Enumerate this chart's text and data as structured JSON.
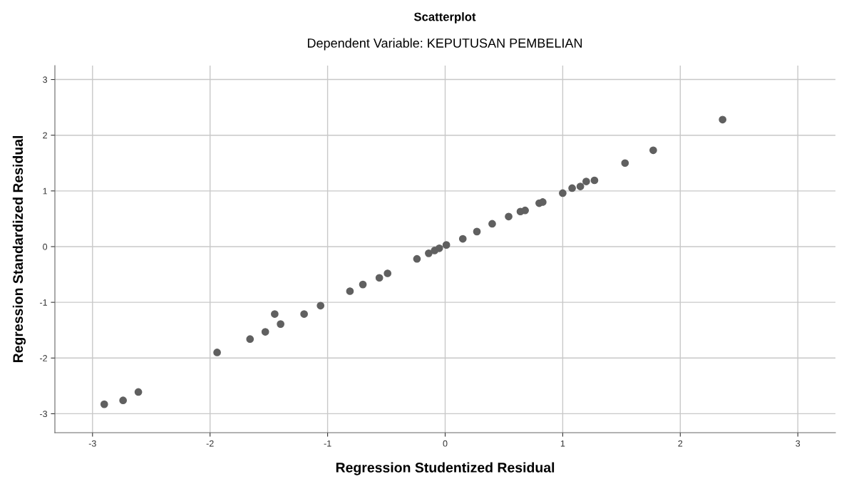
{
  "chart_data": {
    "type": "scatter",
    "title": "Scatterplot",
    "subtitle": "Dependent Variable: KEPUTUSAN PEMBELIAN",
    "xlabel": "Regression Studentized Residual",
    "ylabel": "Regression Standardized Residual",
    "series": [
      {
        "color": "#606060",
        "x": [
          -2.9,
          -2.74,
          -2.61,
          -1.94,
          -1.66,
          -1.53,
          -1.45,
          -1.4,
          -1.2,
          -1.06,
          -0.81,
          -0.7,
          -0.56,
          -0.49,
          -0.24,
          -0.14,
          -0.09,
          -0.05,
          0.01,
          0.15,
          0.27,
          0.4,
          0.54,
          0.64,
          0.68,
          0.8,
          0.83,
          1.0,
          1.08,
          1.15,
          1.2,
          1.27,
          1.53,
          1.77,
          2.36
        ],
        "values": [
          -2.83,
          -2.76,
          -2.61,
          -1.9,
          -1.66,
          -1.53,
          -1.21,
          -1.39,
          -1.21,
          -1.06,
          -0.8,
          -0.68,
          -0.56,
          -0.48,
          -0.22,
          -0.12,
          -0.07,
          -0.03,
          0.03,
          0.14,
          0.27,
          0.41,
          0.54,
          0.63,
          0.65,
          0.78,
          0.8,
          0.96,
          1.05,
          1.08,
          1.17,
          1.19,
          1.5,
          1.73,
          2.28
        ]
      }
    ],
    "xlim": [
      -3.32,
      3.32
    ],
    "ylim": [
      -3.34,
      3.25
    ],
    "xticks": [
      -3,
      -2,
      -1,
      0,
      1,
      2,
      3
    ],
    "yticks": [
      -3,
      -2,
      -1,
      0,
      1,
      2,
      3
    ],
    "grid": true,
    "marker": "circle"
  }
}
